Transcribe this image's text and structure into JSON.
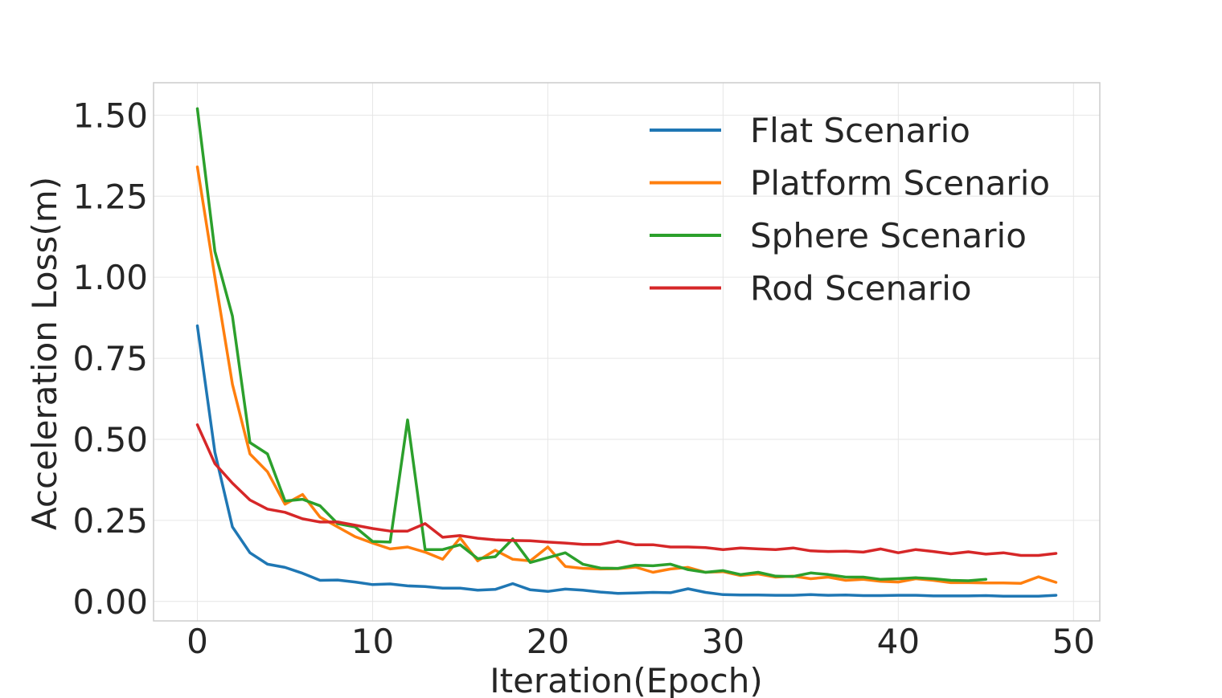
{
  "chart_data": {
    "type": "line",
    "title": "",
    "xlabel": "Iteration(Epoch)",
    "ylabel": "Acceleration Loss(m)",
    "xlim": [
      -2.5,
      51.5
    ],
    "ylim": [
      -0.06,
      1.6
    ],
    "x_ticks": [
      0,
      10,
      20,
      30,
      40,
      50
    ],
    "y_ticks": [
      0.0,
      0.25,
      0.5,
      0.75,
      1.0,
      1.25,
      1.5
    ],
    "x_tick_labels": [
      "0",
      "10",
      "20",
      "30",
      "40",
      "50"
    ],
    "y_tick_labels": [
      "0.00",
      "0.25",
      "0.50",
      "0.75",
      "1.00",
      "1.25",
      "1.50"
    ],
    "grid": true,
    "legend": "top-right",
    "series": [
      {
        "name": "Flat Scenario",
        "color": "#1f77b4",
        "x_start": 0,
        "values": [
          0.85,
          0.46,
          0.23,
          0.15,
          0.115,
          0.105,
          0.087,
          0.065,
          0.066,
          0.06,
          0.052,
          0.054,
          0.048,
          0.046,
          0.041,
          0.041,
          0.035,
          0.037,
          0.055,
          0.036,
          0.031,
          0.038,
          0.035,
          0.029,
          0.025,
          0.026,
          0.028,
          0.027,
          0.039,
          0.028,
          0.021,
          0.02,
          0.02,
          0.019,
          0.019,
          0.021,
          0.019,
          0.02,
          0.018,
          0.018,
          0.019,
          0.019,
          0.017,
          0.017,
          0.017,
          0.018,
          0.016,
          0.016,
          0.016,
          0.019
        ]
      },
      {
        "name": "Platform Scenario",
        "color": "#ff7f0e",
        "x_start": 0,
        "values": [
          1.34,
          1.0,
          0.67,
          0.455,
          0.4,
          0.3,
          0.33,
          0.26,
          0.23,
          0.2,
          0.18,
          0.162,
          0.168,
          0.152,
          0.13,
          0.196,
          0.125,
          0.158,
          0.13,
          0.125,
          0.168,
          0.108,
          0.102,
          0.1,
          0.101,
          0.106,
          0.09,
          0.1,
          0.105,
          0.09,
          0.092,
          0.08,
          0.085,
          0.075,
          0.078,
          0.07,
          0.075,
          0.065,
          0.068,
          0.062,
          0.06,
          0.07,
          0.065,
          0.058,
          0.058,
          0.057,
          0.057,
          0.056,
          0.076,
          0.059
        ]
      },
      {
        "name": "Sphere Scenario",
        "color": "#2ca02c",
        "x_start": 0,
        "values": [
          1.52,
          1.08,
          0.88,
          0.49,
          0.455,
          0.31,
          0.315,
          0.295,
          0.24,
          0.23,
          0.185,
          0.183,
          0.56,
          0.16,
          0.16,
          0.175,
          0.132,
          0.138,
          0.193,
          0.12,
          0.135,
          0.15,
          0.115,
          0.103,
          0.102,
          0.112,
          0.11,
          0.115,
          0.098,
          0.09,
          0.095,
          0.083,
          0.09,
          0.078,
          0.077,
          0.088,
          0.083,
          0.075,
          0.075,
          0.068,
          0.07,
          0.073,
          0.07,
          0.065,
          0.064,
          0.068
        ]
      },
      {
        "name": "Rod Scenario",
        "color": "#d62728",
        "x_start": 0,
        "values": [
          0.545,
          0.425,
          0.365,
          0.313,
          0.285,
          0.275,
          0.255,
          0.245,
          0.245,
          0.235,
          0.225,
          0.217,
          0.217,
          0.24,
          0.198,
          0.203,
          0.195,
          0.19,
          0.188,
          0.187,
          0.183,
          0.18,
          0.176,
          0.176,
          0.186,
          0.175,
          0.175,
          0.168,
          0.168,
          0.166,
          0.16,
          0.165,
          0.162,
          0.16,
          0.165,
          0.156,
          0.154,
          0.155,
          0.152,
          0.162,
          0.15,
          0.16,
          0.154,
          0.147,
          0.153,
          0.146,
          0.15,
          0.142,
          0.142,
          0.148
        ]
      }
    ]
  }
}
